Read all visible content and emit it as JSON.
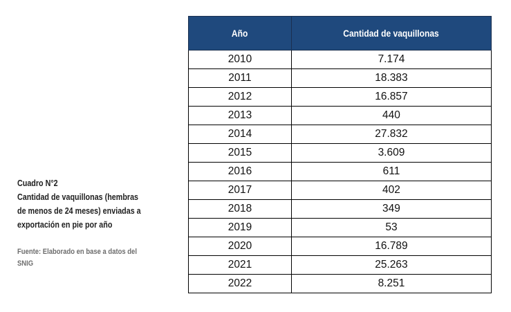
{
  "caption": {
    "label": "Cuadro N°2",
    "lines": [
      "Cantidad de vaquillonas (hembras",
      "de menos de 24 meses) enviadas a",
      "exportación en pie por año"
    ]
  },
  "source": {
    "lines": [
      "Fuente: Elaborado en base a datos del",
      "SNIG"
    ]
  },
  "table": {
    "headers": [
      "Año",
      "Cantidad de vaquillonas"
    ],
    "header_bg": "#1f497d",
    "rows": [
      [
        "2010",
        "7.174"
      ],
      [
        "2011",
        "18.383"
      ],
      [
        "2012",
        "16.857"
      ],
      [
        "2013",
        "440"
      ],
      [
        "2014",
        "27.832"
      ],
      [
        "2015",
        "3.609"
      ],
      [
        "2016",
        "611"
      ],
      [
        "2017",
        "402"
      ],
      [
        "2018",
        "349"
      ],
      [
        "2019",
        "53"
      ],
      [
        "2020",
        "16.789"
      ],
      [
        "2021",
        "25.263"
      ],
      [
        "2022",
        "8.251"
      ]
    ]
  }
}
